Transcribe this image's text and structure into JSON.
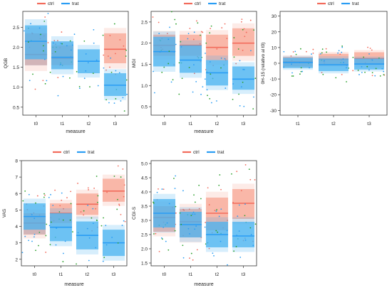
{
  "colors": {
    "ctrl": "#f26b5b",
    "trat": "#2a9df4",
    "ctrl_fill": "#f7a593",
    "trat_fill": "#4ab3f0",
    "pt_green": "#2ca02c"
  },
  "chart_data": [
    {
      "type": "box",
      "title": "",
      "xlabel": "measure",
      "ylabel": "QGB",
      "categories": [
        "t0",
        "t1",
        "t2",
        "t3"
      ],
      "ylim": [
        0.3,
        2.9
      ],
      "yticks": [
        0.5,
        1.0,
        1.5,
        2.0,
        2.5
      ],
      "ytick_labels": [
        "0.5",
        "1.0",
        "1.5",
        "2.0",
        "2.5"
      ],
      "legend": {
        "placement": "top",
        "entries": [
          "ctrl",
          "trat"
        ]
      },
      "series": [
        {
          "name": "ctrl",
          "mean": [
            1.82,
            1.72,
            null,
            1.95
          ],
          "upper": [
            2.35,
            2.05,
            null,
            2.35
          ],
          "lower": [
            1.55,
            1.55,
            null,
            1.6
          ]
        },
        {
          "name": "trat",
          "mean": [
            2.15,
            1.75,
            1.65,
            1.05
          ],
          "upper": [
            2.55,
            2.15,
            1.95,
            1.35
          ],
          "lower": [
            1.7,
            1.45,
            1.35,
            0.78
          ]
        }
      ]
    },
    {
      "type": "box",
      "title": "",
      "xlabel": "measure",
      "ylabel": "MGI",
      "categories": [
        "t0",
        "t1",
        "t2",
        "t3"
      ],
      "ylim": [
        0.3,
        2.75
      ],
      "yticks": [
        0.5,
        1.0,
        1.5,
        2.0,
        2.5
      ],
      "ytick_labels": [
        "0.5",
        "1.0",
        "1.5",
        "2.0",
        "2.5"
      ],
      "legend": {
        "placement": "top",
        "entries": [
          "ctrl",
          "trat"
        ]
      },
      "series": [
        {
          "name": "ctrl",
          "mean": [
            1.95,
            1.95,
            1.9,
            2.0
          ],
          "upper": [
            2.2,
            2.2,
            2.2,
            2.35
          ],
          "lower": [
            1.7,
            1.7,
            1.6,
            1.7
          ]
        },
        {
          "name": "trat",
          "mean": [
            1.8,
            1.6,
            1.3,
            1.15
          ],
          "upper": [
            2.15,
            1.95,
            1.6,
            1.45
          ],
          "lower": [
            1.45,
            1.3,
            1.0,
            0.9
          ]
        }
      ]
    },
    {
      "type": "box",
      "title": "",
      "xlabel": "",
      "ylabel": "0H-15 (relativo al t0)",
      "categories": [
        "t1",
        "t2",
        "t3"
      ],
      "ylim": [
        -33,
        33
      ],
      "yticks": [
        -30,
        -20,
        -10,
        0,
        10,
        20,
        30
      ],
      "ytick_labels": [
        "-30",
        "-20",
        "-10",
        "0",
        "10",
        "20",
        "30"
      ],
      "legend": {
        "placement": "top",
        "entries": [
          "ctrl",
          "trat"
        ]
      },
      "series": [
        {
          "name": "ctrl",
          "mean": [
            1.0,
            2.5,
            3.0
          ],
          "upper": [
            4.0,
            6.0,
            7.0
          ],
          "lower": [
            -2.0,
            -1.0,
            -1.0
          ]
        },
        {
          "name": "trat",
          "mean": [
            0.5,
            -1.0,
            -0.5
          ],
          "upper": [
            3.5,
            3.0,
            3.0
          ],
          "lower": [
            -3.0,
            -5.0,
            -4.0
          ]
        }
      ]
    },
    {
      "type": "box",
      "title": "",
      "xlabel": "measure",
      "ylabel": "VAS",
      "categories": [
        "t0",
        "t1",
        "t2",
        "t3"
      ],
      "ylim": [
        1.6,
        8.0
      ],
      "yticks": [
        2,
        3,
        4,
        5,
        6,
        7,
        8
      ],
      "ytick_labels": [
        "2",
        "3",
        "4",
        "5",
        "6",
        "7",
        "8"
      ],
      "legend": {
        "placement": "top",
        "entries": [
          "ctrl",
          "trat"
        ]
      },
      "series": [
        {
          "name": "ctrl",
          "mean": [
            4.2,
            4.8,
            5.35,
            6.15
          ],
          "upper": [
            4.8,
            5.4,
            6.0,
            6.9
          ],
          "lower": [
            3.5,
            4.2,
            4.7,
            5.5
          ]
        },
        {
          "name": "trat",
          "mean": [
            4.6,
            3.95,
            3.45,
            3.0
          ],
          "upper": [
            5.4,
            4.8,
            4.3,
            3.8
          ],
          "lower": [
            3.8,
            3.1,
            2.6,
            2.2
          ]
        }
      ]
    },
    {
      "type": "box",
      "title": "",
      "xlabel": "measure",
      "ylabel": "CGI-S",
      "categories": [
        "t0",
        "t1",
        "t2",
        "t3"
      ],
      "ylim": [
        1.4,
        5.1
      ],
      "yticks": [
        1.5,
        2.0,
        2.5,
        3.0,
        3.5,
        4.0,
        4.5,
        5.0
      ],
      "ytick_labels": [
        "1.5",
        "2.0",
        "2.5",
        "3.0",
        "3.5",
        "4.0",
        "4.5",
        "5.0"
      ],
      "legend": {
        "placement": "top",
        "entries": [
          "ctrl",
          "trat"
        ]
      },
      "series": [
        {
          "name": "ctrl",
          "mean": [
            3.1,
            2.95,
            3.25,
            3.6
          ],
          "upper": [
            3.5,
            3.4,
            3.8,
            4.1
          ],
          "lower": [
            2.6,
            2.4,
            2.65,
            3.05
          ]
        },
        {
          "name": "trat",
          "mean": [
            3.25,
            2.85,
            2.5,
            2.45
          ],
          "upper": [
            3.75,
            3.3,
            2.95,
            2.95
          ],
          "lower": [
            2.75,
            2.4,
            2.05,
            2.05
          ]
        }
      ]
    }
  ]
}
